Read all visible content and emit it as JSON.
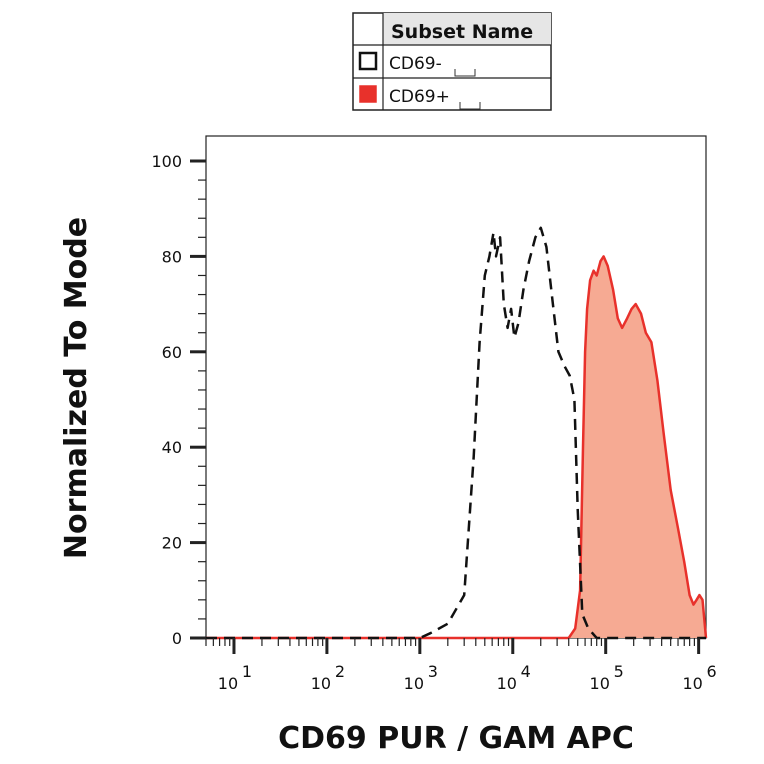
{
  "legend": {
    "header": "Subset Name",
    "entries": [
      {
        "label": "CD69-",
        "swatch": "outline",
        "color": "#111111"
      },
      {
        "label": "CD69+",
        "swatch": "filled",
        "color": "#e8312b"
      }
    ]
  },
  "chart_data": {
    "type": "area",
    "xlabel": "CD69 PUR / GAM APC",
    "ylabel": "Normalized To Mode",
    "x_scale": "log",
    "xlim": [
      5,
      1200000
    ],
    "ylim": [
      0,
      105
    ],
    "x_ticks": [
      {
        "base": "10",
        "exp": "1",
        "value": 10
      },
      {
        "base": "10",
        "exp": "2",
        "value": 100
      },
      {
        "base": "10",
        "exp": "3",
        "value": 1000
      },
      {
        "base": "10",
        "exp": "4",
        "value": 10000
      },
      {
        "base": "10",
        "exp": "5",
        "value": 100000
      },
      {
        "base": "10",
        "exp": "6",
        "value": 1000000
      }
    ],
    "y_ticks": [
      "0",
      "20",
      "40",
      "60",
      "80",
      "100"
    ],
    "grid": false,
    "legend_position": "top-center",
    "series": [
      {
        "name": "CD69-",
        "style": "dashed",
        "color": "#111111",
        "fill": "none",
        "x": [
          5,
          1000,
          1300,
          2000,
          3000,
          3800,
          4400,
          5000,
          5600,
          6200,
          6600,
          7300,
          8000,
          8800,
          9600,
          10400,
          11500,
          13000,
          15000,
          17500,
          20000,
          23000,
          27000,
          31000,
          36000,
          41000,
          46000,
          50000,
          56000,
          65000,
          80000,
          100000,
          1200000
        ],
        "y": [
          0,
          0,
          1,
          3,
          9,
          38,
          62,
          76,
          80,
          85,
          80,
          84,
          70,
          65,
          69,
          63,
          66,
          73,
          79,
          84,
          86,
          82,
          70,
          60,
          57,
          55,
          50,
          27,
          5,
          2,
          0,
          0,
          0
        ]
      },
      {
        "name": "CD69+",
        "style": "solid",
        "color": "#e8312b",
        "fill": "#f6aa93",
        "x": [
          5,
          40000,
          47000,
          53000,
          57000,
          60000,
          63000,
          68000,
          74000,
          80000,
          88000,
          95000,
          105000,
          120000,
          135000,
          150000,
          170000,
          190000,
          210000,
          240000,
          270000,
          310000,
          360000,
          420000,
          500000,
          600000,
          700000,
          800000,
          880000,
          950000,
          1020000,
          1100000,
          1200000
        ],
        "y": [
          0,
          0,
          2,
          10,
          40,
          60,
          69,
          75,
          77,
          76,
          79,
          80,
          78,
          73,
          67,
          65,
          67,
          69,
          70,
          68,
          64,
          62,
          54,
          43,
          31,
          23,
          16,
          9,
          7,
          8,
          9,
          8,
          0
        ]
      }
    ]
  }
}
